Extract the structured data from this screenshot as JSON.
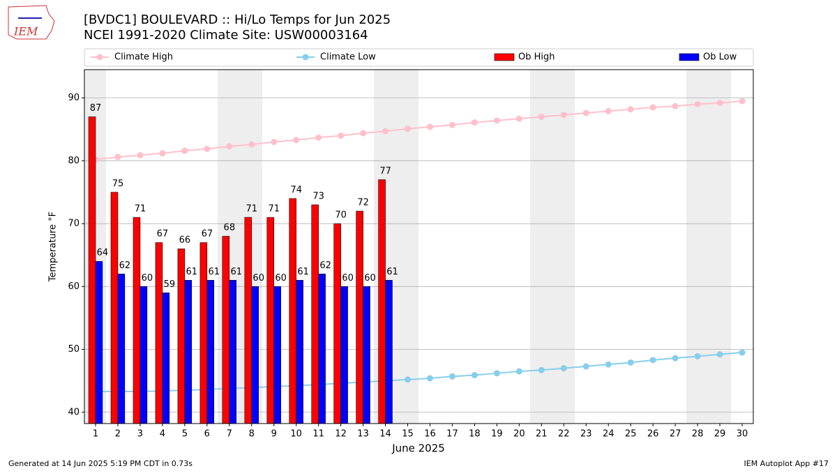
{
  "logo_text": "IEM",
  "footer_left": "Generated at 14 Jun 2025 5:19 PM CDT in 0.73s",
  "footer_right": "IEM Autoplot App #17",
  "chart_data": {
    "type": "bar",
    "title": "[BVDC1] BOULEVARD :: Hi/Lo Temps for Jun 2025",
    "subtitle": "NCEI 1991-2020 Climate Site: USW00003164",
    "xlabel": "June 2025",
    "ylabel": "Temperature °F",
    "x": [
      1,
      2,
      3,
      4,
      5,
      6,
      7,
      8,
      9,
      10,
      11,
      12,
      13,
      14,
      15,
      16,
      17,
      18,
      19,
      20,
      21,
      22,
      23,
      24,
      25,
      26,
      27,
      28,
      29,
      30
    ],
    "xlim": [
      0.5,
      30.5
    ],
    "xticks": [
      1,
      2,
      3,
      4,
      5,
      6,
      7,
      8,
      9,
      10,
      11,
      12,
      13,
      14,
      15,
      16,
      17,
      18,
      19,
      20,
      21,
      22,
      23,
      24,
      25,
      26,
      27,
      28,
      29,
      30
    ],
    "ylim": [
      38.2,
      94.5
    ],
    "yticks": [
      40,
      50,
      60,
      70,
      80,
      90
    ],
    "grid": true,
    "legend_position": "top",
    "series": [
      {
        "name": "Climate High",
        "type": "line",
        "color": "#ffc0cb",
        "values": [
          80.2,
          80.6,
          80.9,
          81.2,
          81.6,
          81.9,
          82.3,
          82.6,
          83.0,
          83.3,
          83.7,
          84.0,
          84.4,
          84.7,
          85.1,
          85.4,
          85.7,
          86.1,
          86.4,
          86.7,
          87.0,
          87.3,
          87.6,
          87.9,
          88.2,
          88.5,
          88.7,
          89.0,
          89.2,
          89.5
        ]
      },
      {
        "name": "Climate Low",
        "type": "line",
        "color": "#87ceeb",
        "values": [
          43.3,
          43.3,
          43.3,
          43.4,
          43.5,
          43.6,
          43.8,
          43.9,
          44.1,
          44.2,
          44.4,
          44.6,
          44.8,
          45.0,
          45.2,
          45.4,
          45.7,
          45.9,
          46.2,
          46.5,
          46.7,
          47.0,
          47.3,
          47.6,
          47.9,
          48.3,
          48.6,
          48.9,
          49.2,
          49.5
        ]
      },
      {
        "name": "Ob High",
        "type": "bar",
        "color": "#ff0000",
        "values": [
          87,
          75,
          71,
          67,
          66,
          67,
          68,
          71,
          71,
          74,
          73,
          70,
          72,
          77,
          null,
          null,
          null,
          null,
          null,
          null,
          null,
          null,
          null,
          null,
          null,
          null,
          null,
          null,
          null,
          null
        ]
      },
      {
        "name": "Ob Low",
        "type": "bar",
        "color": "#0000ff",
        "values": [
          64,
          62,
          60,
          59,
          61,
          61,
          61,
          60,
          60,
          61,
          62,
          60,
          60,
          61,
          null,
          null,
          null,
          null,
          null,
          null,
          null,
          null,
          null,
          null,
          null,
          null,
          null,
          null,
          null,
          null
        ]
      }
    ]
  }
}
